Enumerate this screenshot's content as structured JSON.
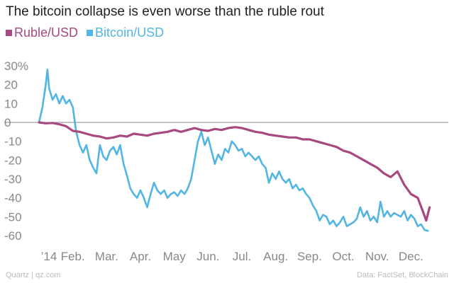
{
  "chart_data": {
    "type": "line",
    "title": "The bitcoin collapse is even worse than the ruble rout",
    "y_unit": "%",
    "ylim": [
      -62,
      32
    ],
    "yticks": [
      30,
      20,
      10,
      0,
      -10,
      -20,
      -30,
      -40,
      -50,
      -60
    ],
    "ytick_labels": [
      "30%",
      "20",
      "10",
      "0",
      "-10",
      "-20",
      "-30",
      "-40",
      "-50",
      "-60"
    ],
    "xlim": [
      0,
      12
    ],
    "xticks": [
      0,
      1,
      2,
      3,
      4,
      5,
      6,
      7,
      8,
      9,
      10,
      11
    ],
    "xtick_labels": [
      "’14",
      "Feb.",
      "Mar.",
      "Apr.",
      "May",
      "Jun.",
      "Jul.",
      "Aug.",
      "Sep.",
      "Oct.",
      "Nov.",
      "Dec."
    ],
    "grid": false,
    "legend_position": "top-left",
    "series": [
      {
        "name": "Ruble/USD",
        "color": "#a7487f",
        "points": [
          [
            0,
            0
          ],
          [
            0.2,
            -0.5
          ],
          [
            0.4,
            -0.3
          ],
          [
            0.6,
            -1
          ],
          [
            0.8,
            -2
          ],
          [
            1.0,
            -4.5
          ],
          [
            1.2,
            -5
          ],
          [
            1.4,
            -6
          ],
          [
            1.6,
            -7
          ],
          [
            1.8,
            -7.5
          ],
          [
            2.0,
            -8.5
          ],
          [
            2.2,
            -8
          ],
          [
            2.4,
            -7
          ],
          [
            2.6,
            -7.5
          ],
          [
            2.8,
            -6
          ],
          [
            3.0,
            -6.5
          ],
          [
            3.2,
            -7
          ],
          [
            3.4,
            -6
          ],
          [
            3.6,
            -5.5
          ],
          [
            3.8,
            -5
          ],
          [
            4.0,
            -4
          ],
          [
            4.2,
            -5
          ],
          [
            4.4,
            -4
          ],
          [
            4.6,
            -3
          ],
          [
            4.8,
            -4
          ],
          [
            5.0,
            -4.5
          ],
          [
            5.2,
            -3.5
          ],
          [
            5.4,
            -4
          ],
          [
            5.6,
            -3
          ],
          [
            5.8,
            -2.5
          ],
          [
            6.0,
            -3
          ],
          [
            6.2,
            -4
          ],
          [
            6.4,
            -5
          ],
          [
            6.6,
            -5.5
          ],
          [
            6.8,
            -6.5
          ],
          [
            7.0,
            -7
          ],
          [
            7.2,
            -7.5
          ],
          [
            7.4,
            -8
          ],
          [
            7.6,
            -8
          ],
          [
            7.8,
            -9
          ],
          [
            8.0,
            -9
          ],
          [
            8.2,
            -10
          ],
          [
            8.4,
            -11
          ],
          [
            8.6,
            -12
          ],
          [
            8.8,
            -13
          ],
          [
            9.0,
            -15
          ],
          [
            9.2,
            -16
          ],
          [
            9.4,
            -18
          ],
          [
            9.6,
            -20
          ],
          [
            9.8,
            -22
          ],
          [
            10.0,
            -24
          ],
          [
            10.2,
            -27
          ],
          [
            10.4,
            -29
          ],
          [
            10.6,
            -26
          ],
          [
            10.8,
            -33
          ],
          [
            11.0,
            -38
          ],
          [
            11.2,
            -40
          ],
          [
            11.35,
            -47
          ],
          [
            11.45,
            -52
          ],
          [
            11.55,
            -45
          ]
        ]
      },
      {
        "name": "Bitcoin/USD",
        "color": "#52b5e4",
        "points": [
          [
            0,
            0
          ],
          [
            0.1,
            8
          ],
          [
            0.2,
            20
          ],
          [
            0.25,
            28
          ],
          [
            0.3,
            18
          ],
          [
            0.4,
            12
          ],
          [
            0.5,
            15
          ],
          [
            0.6,
            10
          ],
          [
            0.7,
            14
          ],
          [
            0.8,
            10
          ],
          [
            0.9,
            12
          ],
          [
            1.0,
            8
          ],
          [
            1.1,
            -5
          ],
          [
            1.2,
            -12
          ],
          [
            1.3,
            -16
          ],
          [
            1.4,
            -12
          ],
          [
            1.5,
            -20
          ],
          [
            1.6,
            -24
          ],
          [
            1.7,
            -27
          ],
          [
            1.8,
            -12
          ],
          [
            1.9,
            -18
          ],
          [
            2.0,
            -20
          ],
          [
            2.1,
            -15
          ],
          [
            2.2,
            -13
          ],
          [
            2.3,
            -17
          ],
          [
            2.4,
            -12
          ],
          [
            2.5,
            -22
          ],
          [
            2.6,
            -28
          ],
          [
            2.7,
            -35
          ],
          [
            2.8,
            -38
          ],
          [
            2.9,
            -40
          ],
          [
            3.0,
            -36
          ],
          [
            3.1,
            -40
          ],
          [
            3.2,
            -45
          ],
          [
            3.3,
            -38
          ],
          [
            3.4,
            -32
          ],
          [
            3.5,
            -36
          ],
          [
            3.6,
            -38
          ],
          [
            3.7,
            -36
          ],
          [
            3.8,
            -40
          ],
          [
            3.9,
            -38
          ],
          [
            4.0,
            -37
          ],
          [
            4.1,
            -39
          ],
          [
            4.2,
            -36
          ],
          [
            4.3,
            -38
          ],
          [
            4.4,
            -35
          ],
          [
            4.5,
            -30
          ],
          [
            4.6,
            -20
          ],
          [
            4.7,
            -10
          ],
          [
            4.8,
            -5
          ],
          [
            4.9,
            -12
          ],
          [
            5.0,
            -8
          ],
          [
            5.1,
            -15
          ],
          [
            5.2,
            -22
          ],
          [
            5.3,
            -17
          ],
          [
            5.4,
            -20
          ],
          [
            5.5,
            -14
          ],
          [
            5.6,
            -16
          ],
          [
            5.7,
            -10
          ],
          [
            5.8,
            -12
          ],
          [
            5.9,
            -15
          ],
          [
            6.0,
            -14
          ],
          [
            6.1,
            -18
          ],
          [
            6.2,
            -16
          ],
          [
            6.3,
            -18
          ],
          [
            6.4,
            -20
          ],
          [
            6.5,
            -18
          ],
          [
            6.6,
            -22
          ],
          [
            6.7,
            -24
          ],
          [
            6.8,
            -32
          ],
          [
            6.9,
            -27
          ],
          [
            7.0,
            -30
          ],
          [
            7.1,
            -26
          ],
          [
            7.2,
            -30
          ],
          [
            7.3,
            -32
          ],
          [
            7.4,
            -30
          ],
          [
            7.5,
            -35
          ],
          [
            7.6,
            -33
          ],
          [
            7.7,
            -36
          ],
          [
            7.8,
            -35
          ],
          [
            7.9,
            -38
          ],
          [
            8.0,
            -40
          ],
          [
            8.1,
            -44
          ],
          [
            8.2,
            -47
          ],
          [
            8.3,
            -52
          ],
          [
            8.4,
            -49
          ],
          [
            8.5,
            -50
          ],
          [
            8.6,
            -54
          ],
          [
            8.7,
            -52
          ],
          [
            8.8,
            -55
          ],
          [
            8.9,
            -53
          ],
          [
            9.0,
            -50
          ],
          [
            9.1,
            -55
          ],
          [
            9.2,
            -54
          ],
          [
            9.3,
            -53
          ],
          [
            9.4,
            -51
          ],
          [
            9.5,
            -45
          ],
          [
            9.6,
            -50
          ],
          [
            9.7,
            -47
          ],
          [
            9.8,
            -52
          ],
          [
            9.9,
            -50
          ],
          [
            10.0,
            -53
          ],
          [
            10.1,
            -42
          ],
          [
            10.2,
            -50
          ],
          [
            10.3,
            -47
          ],
          [
            10.4,
            -50
          ],
          [
            10.5,
            -48
          ],
          [
            10.6,
            -49
          ],
          [
            10.7,
            -50
          ],
          [
            10.8,
            -47
          ],
          [
            10.9,
            -52
          ],
          [
            11.0,
            -49
          ],
          [
            11.1,
            -51
          ],
          [
            11.2,
            -55
          ],
          [
            11.3,
            -54
          ],
          [
            11.4,
            -57
          ],
          [
            11.5,
            -57.5
          ]
        ]
      }
    ]
  },
  "footer": {
    "source_left": "Quartz | qz.com",
    "source_right": "Data: FactSet, BlockChain"
  }
}
